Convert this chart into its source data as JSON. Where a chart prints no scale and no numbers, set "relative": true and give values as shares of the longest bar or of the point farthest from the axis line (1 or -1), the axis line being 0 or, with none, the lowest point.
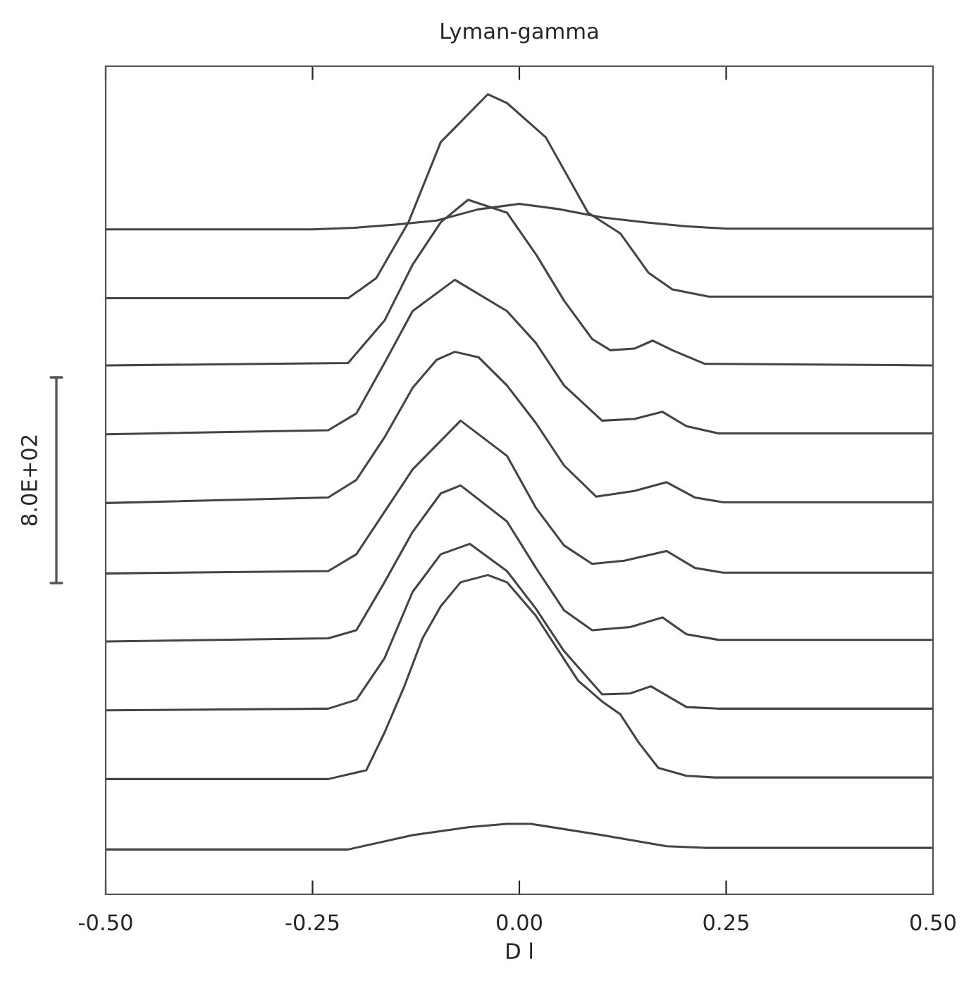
{
  "chart_data": {
    "type": "line",
    "title": "Lyman-gamma",
    "xlabel": "D l",
    "relative": true,
    "annotations": [
      "8.0E+02"
    ],
    "xlim": [
      -0.5,
      0.5
    ],
    "xticks": [
      {
        "value": -0.5,
        "label": "-0.50"
      },
      {
        "value": -0.25,
        "label": "-0.25"
      },
      {
        "value": 0,
        "label": "0.00"
      },
      {
        "value": 0.25,
        "label": "0.25"
      },
      {
        "value": 0.5,
        "label": "0.50"
      }
    ],
    "grid": false,
    "legend": false,
    "marker": "none",
    "line_style": "solid",
    "series": [
      {
        "color": "#444444",
        "x": [
          -0.5,
          -0.25,
          -0.2,
          -0.15,
          -0.1,
          -0.05,
          0,
          0.05,
          0.1,
          0.15,
          0.2,
          0.25,
          0.5
        ],
        "values": [
          0.831,
          0.831,
          0.833,
          0.837,
          0.842,
          0.856,
          0.863,
          0.856,
          0.846,
          0.84,
          0.835,
          0.832,
          0.832
        ]
      },
      {
        "color": "#444444",
        "x": [
          -0.5,
          -0.207,
          -0.173,
          -0.134,
          -0.095,
          -0.038,
          -0.015,
          0.032,
          0.083,
          0.122,
          0.156,
          0.185,
          0.229,
          0.5
        ],
        "values": [
          0.745,
          0.745,
          0.77,
          0.84,
          0.94,
          1.0,
          0.989,
          0.946,
          0.852,
          0.826,
          0.777,
          0.756,
          0.747,
          0.747
        ]
      },
      {
        "color": "#444444",
        "x": [
          -0.5,
          -0.207,
          -0.163,
          -0.129,
          -0.095,
          -0.062,
          -0.015,
          0.02,
          0.054,
          0.088,
          0.11,
          0.139,
          0.161,
          0.185,
          0.224,
          0.5
        ],
        "values": [
          0.661,
          0.664,
          0.717,
          0.787,
          0.84,
          0.868,
          0.852,
          0.8,
          0.742,
          0.694,
          0.68,
          0.682,
          0.692,
          0.68,
          0.663,
          0.661
        ]
      },
      {
        "color": "#444444",
        "x": [
          -0.5,
          -0.231,
          -0.197,
          -0.163,
          -0.129,
          -0.078,
          -0.015,
          0.02,
          0.054,
          0.1,
          0.139,
          0.173,
          0.202,
          0.241,
          0.5
        ],
        "values": [
          0.575,
          0.58,
          0.601,
          0.664,
          0.729,
          0.768,
          0.729,
          0.689,
          0.636,
          0.592,
          0.594,
          0.603,
          0.585,
          0.576,
          0.576
        ]
      },
      {
        "color": "#444444",
        "x": [
          -0.5,
          -0.231,
          -0.197,
          -0.163,
          -0.129,
          -0.1,
          -0.078,
          -0.049,
          -0.015,
          0.02,
          0.054,
          0.093,
          0.139,
          0.178,
          0.212,
          0.246,
          0.5
        ],
        "values": [
          0.489,
          0.496,
          0.518,
          0.571,
          0.633,
          0.668,
          0.678,
          0.671,
          0.636,
          0.589,
          0.536,
          0.497,
          0.504,
          0.515,
          0.496,
          0.49,
          0.49
        ]
      },
      {
        "color": "#444444",
        "x": [
          -0.5,
          -0.231,
          -0.197,
          -0.163,
          -0.129,
          -0.071,
          -0.015,
          0.02,
          0.054,
          0.088,
          0.127,
          0.178,
          0.212,
          0.246,
          0.5
        ],
        "values": [
          0.401,
          0.404,
          0.425,
          0.478,
          0.531,
          0.592,
          0.548,
          0.483,
          0.436,
          0.413,
          0.417,
          0.429,
          0.408,
          0.402,
          0.402
        ]
      },
      {
        "color": "#444444",
        "x": [
          -0.5,
          -0.231,
          -0.197,
          -0.163,
          -0.129,
          -0.095,
          -0.071,
          -0.015,
          0.02,
          0.054,
          0.088,
          0.134,
          0.173,
          0.202,
          0.241,
          0.5
        ],
        "values": [
          0.316,
          0.32,
          0.33,
          0.39,
          0.453,
          0.501,
          0.511,
          0.466,
          0.408,
          0.355,
          0.33,
          0.334,
          0.346,
          0.325,
          0.318,
          0.318
        ]
      },
      {
        "color": "#444444",
        "x": [
          -0.5,
          -0.231,
          -0.197,
          -0.163,
          -0.129,
          -0.095,
          -0.06,
          -0.015,
          0.02,
          0.054,
          0.1,
          0.134,
          0.159,
          0.202,
          0.241,
          0.5
        ],
        "values": [
          0.23,
          0.232,
          0.243,
          0.295,
          0.378,
          0.425,
          0.438,
          0.404,
          0.357,
          0.304,
          0.25,
          0.251,
          0.26,
          0.234,
          0.232,
          0.232
        ]
      },
      {
        "color": "#444444",
        "x": [
          -0.5,
          -0.231,
          -0.185,
          -0.163,
          -0.139,
          -0.117,
          -0.095,
          -0.071,
          -0.038,
          -0.015,
          0.02,
          0.071,
          0.1,
          0.122,
          0.144,
          0.168,
          0.202,
          0.236,
          0.5
        ],
        "values": [
          0.144,
          0.144,
          0.155,
          0.202,
          0.26,
          0.32,
          0.36,
          0.39,
          0.399,
          0.39,
          0.348,
          0.267,
          0.241,
          0.225,
          0.19,
          0.158,
          0.148,
          0.146,
          0.146
        ]
      },
      {
        "color": "#444444",
        "x": [
          -0.5,
          -0.207,
          -0.129,
          -0.06,
          -0.015,
          0.014,
          0.1,
          0.178,
          0.224,
          0.5
        ],
        "values": [
          0.056,
          0.056,
          0.074,
          0.084,
          0.088,
          0.088,
          0.074,
          0.06,
          0.058,
          0.058
        ]
      }
    ]
  }
}
